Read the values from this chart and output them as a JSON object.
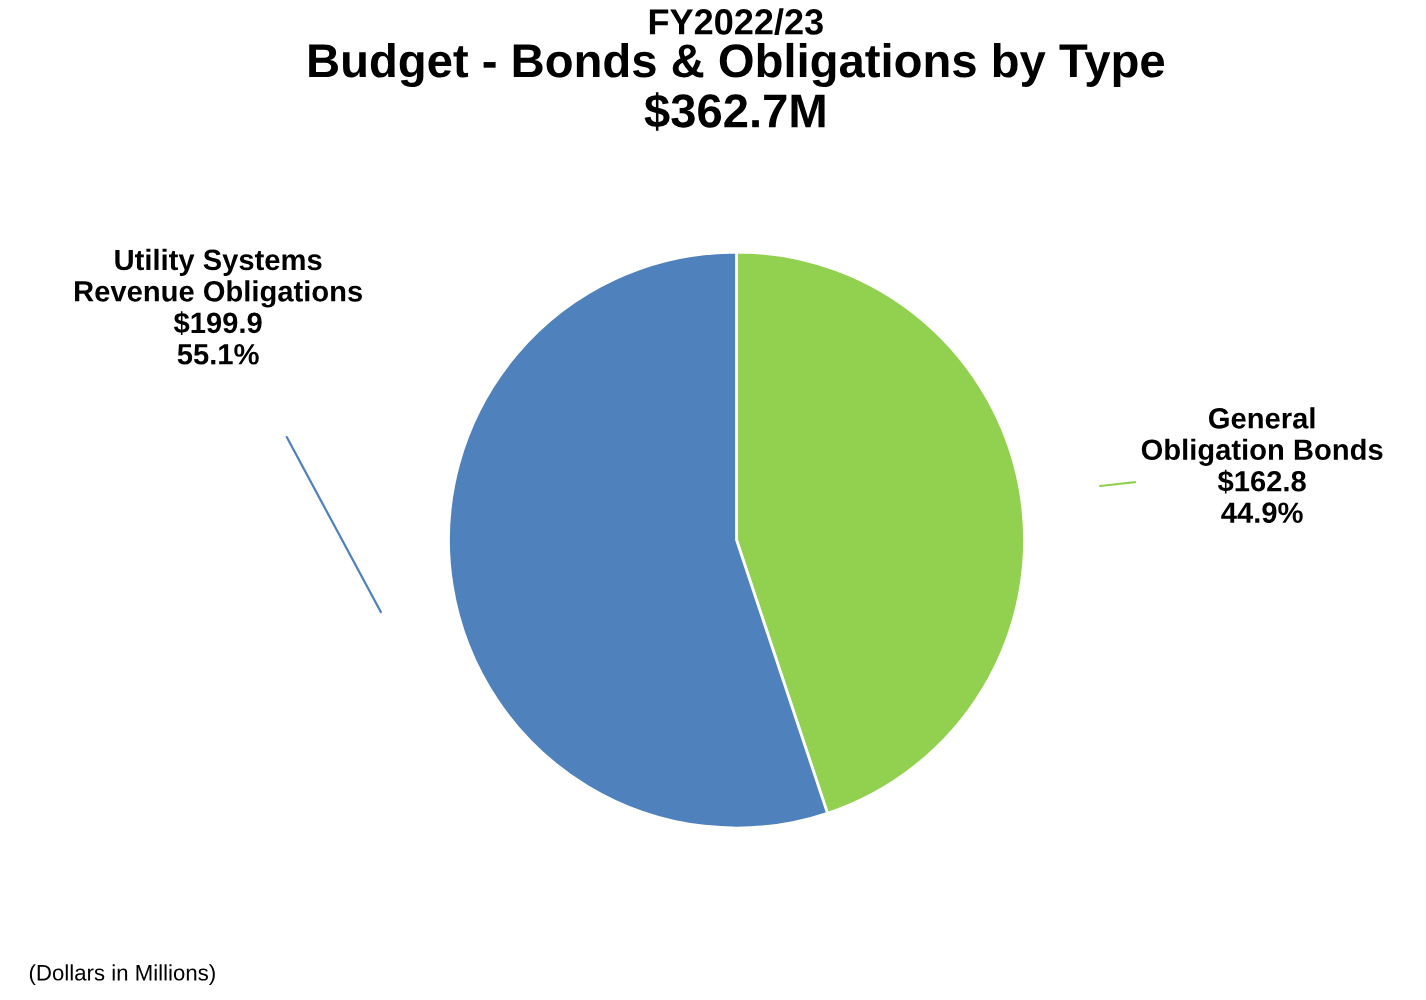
{
  "chart_data": {
    "type": "pie",
    "title": "Budget - Bonds & Obligations by Type",
    "subtitle": "$362.7M",
    "annotations": [
      "FY2022/23",
      "(Dollars in Millions)"
    ],
    "categories": [
      "General\nObligation Bonds",
      "Utility Systems\nRevenue Obligations"
    ],
    "values": [
      162.8,
      199.9
    ],
    "colors": [
      "#92d050",
      "#4f81bd"
    ],
    "value_labels": [
      "$162.8\n44.9%",
      "$199.9\n55.1%"
    ],
    "legend": false
  }
}
